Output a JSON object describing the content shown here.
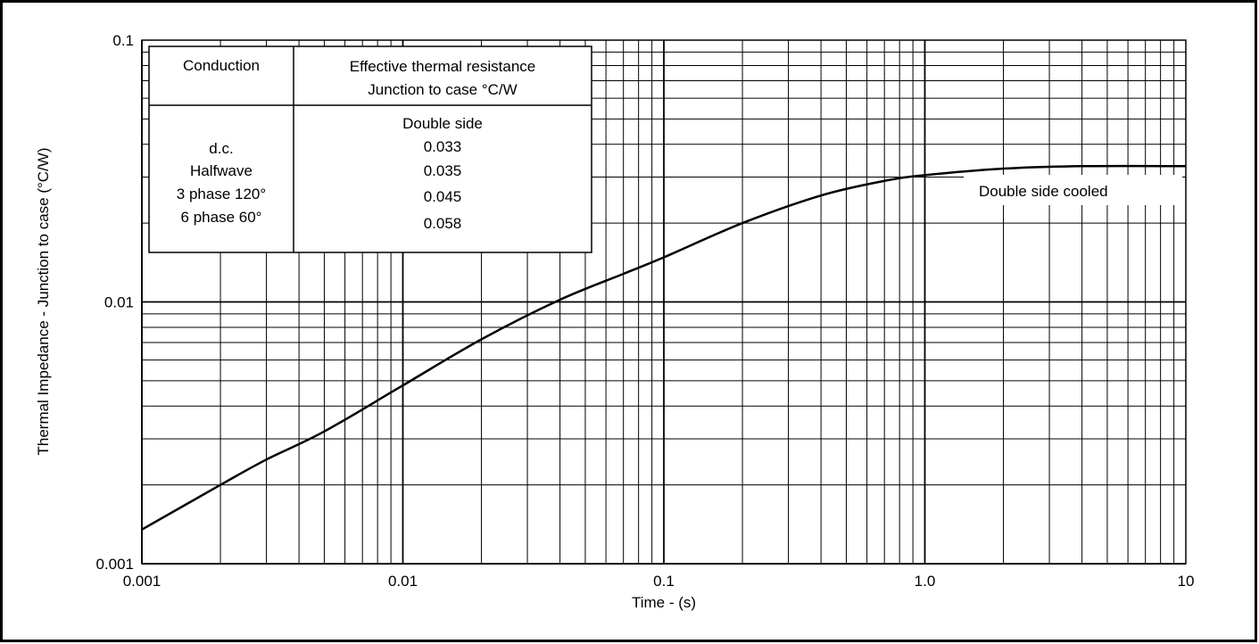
{
  "chart_data": {
    "type": "line",
    "title": "",
    "xlabel": "Time - (s)",
    "ylabel": "Thermal Impedance - Junction to case (°C/W)",
    "xscale": "log",
    "yscale": "log",
    "xlim": [
      0.001,
      10
    ],
    "ylim": [
      0.001,
      0.1
    ],
    "grid": true,
    "x_ticks": [
      "0.001",
      "0.01",
      "0.1",
      "1.0",
      "10"
    ],
    "y_ticks": [
      "0.001",
      "0.01",
      "0.1"
    ],
    "series": [
      {
        "name": "Double side cooled",
        "color": "#000000",
        "points": [
          [
            0.001,
            0.00135
          ],
          [
            0.002,
            0.002
          ],
          [
            0.003,
            0.0025
          ],
          [
            0.005,
            0.0032
          ],
          [
            0.01,
            0.0048
          ],
          [
            0.02,
            0.0072
          ],
          [
            0.04,
            0.0102
          ],
          [
            0.07,
            0.0128
          ],
          [
            0.1,
            0.0148
          ],
          [
            0.2,
            0.02
          ],
          [
            0.4,
            0.0255
          ],
          [
            0.7,
            0.029
          ],
          [
            1.0,
            0.0305
          ],
          [
            2.0,
            0.0323
          ],
          [
            4.0,
            0.033
          ],
          [
            10,
            0.033
          ]
        ]
      }
    ],
    "table": {
      "header": [
        "Conduction",
        "Effective thermal resistance",
        "Junction to case °C/W"
      ],
      "subheader": "Double side",
      "rows": [
        {
          "conduction": "d.c.",
          "value": "0.033"
        },
        {
          "conduction": "Halfwave",
          "value": "0.035"
        },
        {
          "conduction": "3 phase 120°",
          "value": "0.045"
        },
        {
          "conduction": "6 phase 60°",
          "value": "0.058"
        }
      ]
    }
  }
}
